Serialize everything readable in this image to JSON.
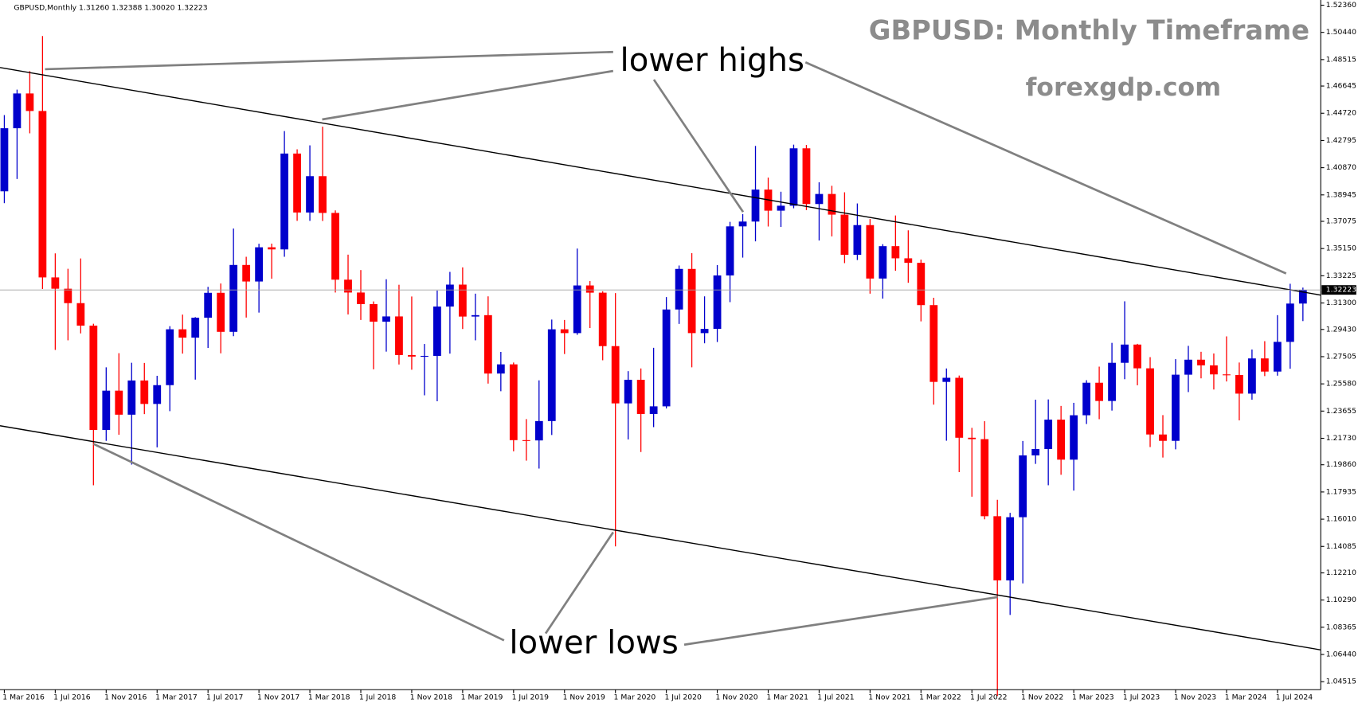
{
  "chart_data": {
    "type": "candlestick",
    "header": "GBPUSD,Monthly  1.31260 1.32388 1.30020 1.32223",
    "title": "GBPUSD: Monthly Timeframe",
    "subtitle": "forexgdp.com",
    "annotations": [
      "lower highs",
      "lower lows"
    ],
    "up_color": "#0000cc",
    "down_color": "#ff0000",
    "categories": [
      "1 Mar 2016",
      null,
      null,
      null,
      "1 Jul 2016",
      null,
      null,
      null,
      "1 Nov 2016",
      null,
      null,
      null,
      "1 Mar 2017",
      null,
      null,
      null,
      "1 Jul 2017",
      null,
      null,
      null,
      "1 Nov 2017",
      null,
      null,
      null,
      "1 Mar 2018",
      null,
      null,
      null,
      "1 Jul 2018",
      null,
      null,
      null,
      "1 Nov 2018",
      null,
      null,
      null,
      "1 Mar 2019",
      null,
      null,
      null,
      "1 Jul 2019",
      null,
      null,
      null,
      "1 Nov 2019",
      null,
      null,
      null,
      "1 Mar 2020",
      null,
      null,
      null,
      "1 Jul 2020",
      null,
      null,
      null,
      "1 Nov 2020",
      null,
      null,
      null,
      "1 Mar 2021",
      null,
      null,
      null,
      "1 Jul 2021",
      null,
      null,
      null,
      "1 Nov 2021",
      null,
      null,
      null,
      "1 Mar 2022",
      null,
      null,
      null,
      "1 Jul 2022",
      null,
      null,
      null,
      "1 Nov 2022",
      null,
      null,
      null,
      "1 Mar 2023",
      null,
      null,
      null,
      "1 Jul 2023",
      null,
      null,
      null,
      "1 Nov 2023",
      null,
      null,
      null,
      "1 Mar 2024",
      null,
      null,
      null,
      "1 Jul 2024",
      null,
      null
    ],
    "open": [
      1.392,
      1.4366,
      1.4612,
      1.4488,
      1.3311,
      1.3231,
      1.3129,
      1.297,
      1.2232,
      1.251,
      1.234,
      1.2582,
      1.2416,
      1.2549,
      1.2944,
      1.2885,
      1.3026,
      1.3202,
      1.2926,
      1.3399,
      1.3282,
      1.3524,
      1.3509,
      1.4187,
      1.377,
      1.4027,
      1.3767,
      1.3295,
      1.3204,
      1.3122,
      1.2998,
      1.3035,
      1.2762,
      1.2751,
      1.2756,
      1.3105,
      1.326,
      1.3034,
      1.3044,
      1.2631,
      1.2696,
      1.216,
      1.2158,
      1.2295,
      1.2944,
      1.2917,
      1.3254,
      1.3203,
      1.2825,
      1.242,
      1.2587,
      1.2345,
      1.2399,
      1.3084,
      1.3371,
      1.2917,
      1.2947,
      1.3325,
      1.3672,
      1.3706,
      1.3932,
      1.3783,
      1.3818,
      1.4224,
      1.383,
      1.3901,
      1.3755,
      1.3471,
      1.3681,
      1.3303,
      1.3532,
      1.3446,
      1.3414,
      1.3115,
      1.2572,
      1.2601,
      1.2177,
      1.2167,
      1.1622,
      1.1168,
      1.1615,
      1.2052,
      1.2097,
      1.2305,
      1.2022,
      1.2336,
      1.2566,
      1.2437,
      1.2707,
      1.2836,
      1.2668,
      1.22,
      1.2155,
      1.2623,
      1.2729,
      1.2689,
      1.2625,
      1.2621,
      1.2489,
      1.2738,
      1.2645,
      1.2855,
      1.3126
    ],
    "high": [
      1.4459,
      1.4639,
      1.477,
      1.5018,
      1.3481,
      1.3372,
      1.3445,
      1.2983,
      1.2675,
      1.2775,
      1.2707,
      1.2706,
      1.2615,
      1.2966,
      1.3048,
      1.303,
      1.3244,
      1.3268,
      1.3657,
      1.3457,
      1.3549,
      1.355,
      1.4346,
      1.4217,
      1.4245,
      1.4377,
      1.3785,
      1.3472,
      1.3363,
      1.3141,
      1.3298,
      1.3259,
      1.3176,
      1.284,
      1.3218,
      1.335,
      1.3382,
      1.3196,
      1.3177,
      1.2784,
      1.2709,
      1.2309,
      1.2583,
      1.3013,
      1.301,
      1.3515,
      1.3285,
      1.3213,
      1.32,
      1.2648,
      1.2667,
      1.2813,
      1.3172,
      1.3395,
      1.3482,
      1.3177,
      1.3398,
      1.3704,
      1.3759,
      1.4241,
      1.4017,
      1.3917,
      1.425,
      1.4248,
      1.3984,
      1.3959,
      1.3913,
      1.3834,
      1.3724,
      1.3546,
      1.3749,
      1.3644,
      1.3437,
      1.3167,
      1.2667,
      1.2617,
      1.2247,
      1.2294,
      1.1738,
      1.1646,
      1.2154,
      1.2446,
      1.2448,
      1.2402,
      1.2424,
      1.2584,
      1.268,
      1.2848,
      1.3142,
      1.2841,
      1.2747,
      1.2337,
      1.2733,
      1.2827,
      1.2785,
      1.2773,
      1.2894,
      1.2709,
      1.2801,
      1.286,
      1.3044,
      1.3266,
      1.32388
    ],
    "low": [
      1.3836,
      1.4007,
      1.433,
      1.3229,
      1.2798,
      1.2866,
      1.2915,
      1.1841,
      1.2155,
      1.2198,
      1.1987,
      1.2344,
      1.2109,
      1.2365,
      1.2772,
      1.2588,
      1.2812,
      1.2774,
      1.2895,
      1.3027,
      1.3062,
      1.3302,
      1.3457,
      1.3711,
      1.3711,
      1.371,
      1.3204,
      1.3049,
      1.301,
      1.2661,
      1.2786,
      1.2695,
      1.2658,
      1.2477,
      1.2435,
      1.2772,
      1.2946,
      1.2866,
      1.256,
      1.2506,
      1.2081,
      1.2015,
      1.1959,
      1.2196,
      1.2769,
      1.2905,
      1.2953,
      1.2725,
      1.1409,
      1.2165,
      1.2076,
      1.2252,
      1.2384,
      1.2982,
      1.2675,
      1.2845,
      1.2854,
      1.3136,
      1.3451,
      1.3566,
      1.3671,
      1.3668,
      1.38,
      1.3787,
      1.3572,
      1.3601,
      1.3412,
      1.3434,
      1.3196,
      1.3161,
      1.3358,
      1.3273,
      1.3,
      1.2411,
      1.2156,
      1.1934,
      1.176,
      1.16,
      1.035,
      1.0924,
      1.1147,
      1.1992,
      1.1841,
      1.1915,
      1.1803,
      1.2274,
      1.2308,
      1.2369,
      1.2591,
      1.2548,
      1.2111,
      1.2037,
      1.2095,
      1.25,
      1.2597,
      1.2518,
      1.2575,
      1.23,
      1.2446,
      1.2613,
      1.2616,
      1.2665,
      1.3002
    ],
    "close": [
      1.4366,
      1.4612,
      1.4488,
      1.3311,
      1.3231,
      1.3129,
      1.297,
      1.2232,
      1.251,
      1.234,
      1.2582,
      1.2416,
      1.2549,
      1.2944,
      1.2885,
      1.3026,
      1.3202,
      1.2926,
      1.3399,
      1.3282,
      1.3524,
      1.3509,
      1.4187,
      1.377,
      1.4027,
      1.3767,
      1.3295,
      1.3204,
      1.3122,
      1.2998,
      1.3035,
      1.2762,
      1.2751,
      1.2756,
      1.3105,
      1.326,
      1.3034,
      1.3044,
      1.2631,
      1.2696,
      1.216,
      1.2158,
      1.2295,
      1.2944,
      1.2917,
      1.3254,
      1.3203,
      1.2825,
      1.242,
      1.2587,
      1.2345,
      1.2399,
      1.3084,
      1.3371,
      1.2917,
      1.2947,
      1.3325,
      1.3672,
      1.3706,
      1.3932,
      1.3783,
      1.3818,
      1.4224,
      1.383,
      1.3901,
      1.3755,
      1.3471,
      1.3681,
      1.3303,
      1.3532,
      1.3446,
      1.3414,
      1.3115,
      1.2572,
      1.2601,
      1.2177,
      1.2167,
      1.1622,
      1.1168,
      1.1615,
      1.2052,
      1.2097,
      1.2305,
      1.2022,
      1.2336,
      1.2566,
      1.2437,
      1.2707,
      1.2836,
      1.2668,
      1.22,
      1.2155,
      1.2623,
      1.2729,
      1.2689,
      1.2625,
      1.2621,
      1.2489,
      1.2738,
      1.2645,
      1.2855,
      1.3126,
      1.32223
    ],
    "last_price": {
      "value": 1.32223,
      "label": "1.32223"
    },
    "ylim": [
      1.0395,
      1.5273
    ],
    "yticks": [
      {
        "value": 1.5236,
        "label": "1.52360"
      },
      {
        "value": 1.5044,
        "label": "1.50440"
      },
      {
        "value": 1.48515,
        "label": "1.48515"
      },
      {
        "value": 1.46645,
        "label": "1.46645"
      },
      {
        "value": 1.4472,
        "label": "1.44720"
      },
      {
        "value": 1.42795,
        "label": "1.42795"
      },
      {
        "value": 1.4087,
        "label": "1.40870"
      },
      {
        "value": 1.38945,
        "label": "1.38945"
      },
      {
        "value": 1.37075,
        "label": "1.37075"
      },
      {
        "value": 1.3515,
        "label": "1.35150"
      },
      {
        "value": 1.33225,
        "label": "1.33225"
      },
      {
        "value": 1.313,
        "label": "1.31300"
      },
      {
        "value": 1.2943,
        "label": "1.29430"
      },
      {
        "value": 1.27505,
        "label": "1.27505"
      },
      {
        "value": 1.2558,
        "label": "1.25580"
      },
      {
        "value": 1.23655,
        "label": "1.23655"
      },
      {
        "value": 1.2173,
        "label": "1.21730"
      },
      {
        "value": 1.1986,
        "label": "1.19860"
      },
      {
        "value": 1.17935,
        "label": "1.17935"
      },
      {
        "value": 1.1601,
        "label": "1.16010"
      },
      {
        "value": 1.14085,
        "label": "1.14085"
      },
      {
        "value": 1.1221,
        "label": "1.12210"
      },
      {
        "value": 1.1029,
        "label": "1.10290"
      },
      {
        "value": 1.08365,
        "label": "1.08365"
      },
      {
        "value": 1.0644,
        "label": "1.06440"
      },
      {
        "value": 1.04515,
        "label": "1.04515"
      }
    ]
  }
}
